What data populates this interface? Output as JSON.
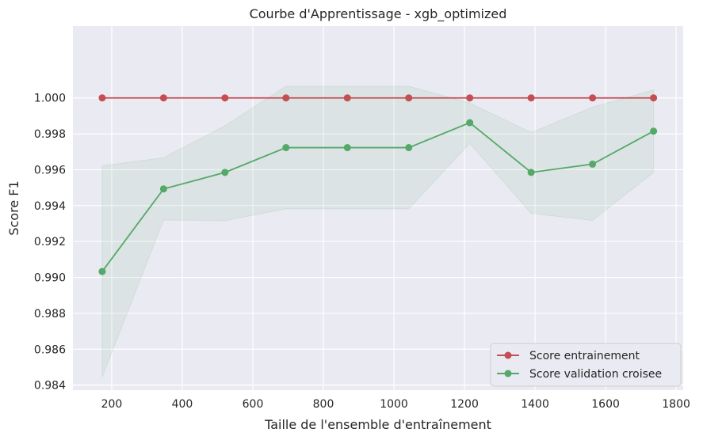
{
  "chart_data": {
    "type": "line",
    "title": "Courbe d'Apprentissage - xgb_optimized",
    "xlabel": "Taille de l'ensemble d'entraînement",
    "ylabel": "Score F1",
    "xlim": [
      90,
      1820
    ],
    "ylim": [
      0.98372,
      0.904
    ],
    "xticks": [
      200,
      400,
      600,
      800,
      1000,
      1200,
      1400,
      1600,
      1800
    ],
    "xtick_labels": [
      "200",
      "400",
      "600",
      "800",
      "1000",
      "1200",
      "1400",
      "1600",
      "1800"
    ],
    "yticks": [
      0.984,
      0.986,
      0.988,
      0.99,
      0.992,
      0.994,
      0.996,
      0.998,
      1.0
    ],
    "ytick_labels": [
      "0.984",
      "0.986",
      "0.988",
      "0.990",
      "0.992",
      "0.994",
      "0.996",
      "0.998",
      "1.000"
    ],
    "grid": true,
    "legend_position": "bottom-right",
    "x": [
      173,
      347,
      521,
      694,
      868,
      1042,
      1215,
      1389,
      1563,
      1736
    ],
    "series": [
      {
        "name": "Score entrainement",
        "color": "#c44e52",
        "values": [
          1.0,
          1.0,
          1.0,
          1.0,
          1.0,
          1.0,
          1.0,
          1.0,
          1.0,
          1.0
        ]
      },
      {
        "name": "Score validation croisee",
        "color": "#55a868",
        "values": [
          0.99033,
          0.99493,
          0.99585,
          0.99723,
          0.99723,
          0.99723,
          0.99862,
          0.99585,
          0.99631,
          0.99815
        ],
        "band_upper": [
          0.99622,
          0.99667,
          0.99845,
          1.00065,
          1.00065,
          1.00065,
          0.99972,
          0.99807,
          0.99948,
          1.00045
        ],
        "band_lower": [
          0.98445,
          0.9932,
          0.99316,
          0.99382,
          0.99382,
          0.99382,
          0.99747,
          0.99357,
          0.99317,
          0.99585
        ]
      }
    ]
  },
  "colors": {
    "background": "#ffffff",
    "plot_background": "#eaeaf2",
    "grid": "#ffffff",
    "band": "#55a868"
  }
}
